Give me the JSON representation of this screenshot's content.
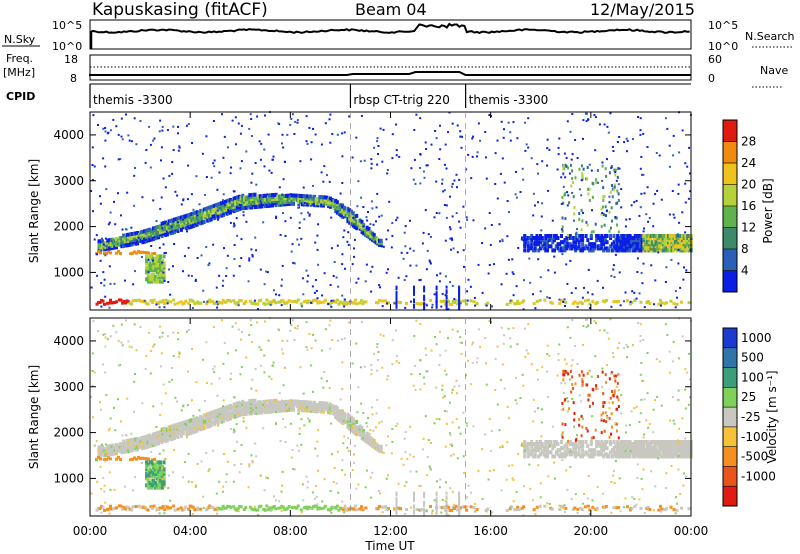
{
  "header": {
    "station": "Kapuskasing (fitACF)",
    "beam": "Beam 04",
    "date": "12/May/2015"
  },
  "top_panels": {
    "nsky_label": "N.Sky",
    "nsky_ticks": [
      "10^5",
      "10^0"
    ],
    "nsearch_label": "N.Search",
    "nsearch_ticks": [
      "10^5",
      "10^0"
    ],
    "freq_label": "Freq.",
    "freq_unit": "[MHz]",
    "freq_ticks": [
      "18",
      "8"
    ],
    "nave_label": "Nave",
    "nave_ticks": [
      "60",
      "0"
    ],
    "cpid_label": "CPID"
  },
  "cpid_segments": [
    {
      "label": "themis -3300",
      "start_hour": 0.0,
      "end_hour": 10.4
    },
    {
      "label": "rbsp CT-trig 220",
      "start_hour": 10.4,
      "end_hour": 15.0
    },
    {
      "label": "themis -3300",
      "start_hour": 15.0,
      "end_hour": 24.0
    }
  ],
  "x_axis": {
    "label": "Time UT",
    "range_hours": [
      0,
      24
    ],
    "ticks": [
      "00:00",
      "04:00",
      "08:00",
      "12:00",
      "16:00",
      "20:00",
      "00:00"
    ],
    "tick_hours": [
      0,
      4,
      8,
      12,
      16,
      20,
      24
    ]
  },
  "y_axis": {
    "label": "Slant Range [km]",
    "range_km": [
      180,
      4500
    ],
    "ticks": [
      "1000",
      "2000",
      "3000",
      "4000"
    ],
    "tick_values": [
      1000,
      2000,
      3000,
      4000
    ]
  },
  "power_colorbar": {
    "label": "Power [dB]",
    "range": [
      0,
      32
    ],
    "ticks": [
      "4",
      "8",
      "12",
      "16",
      "20",
      "24",
      "28"
    ],
    "colors": [
      "#0a1ee6",
      "#2a5fb8",
      "#3d8a6a",
      "#5fb24e",
      "#b6d23a",
      "#f0c21e",
      "#f08a10",
      "#e11a10"
    ]
  },
  "velocity_colorbar": {
    "label": "Velocity [m s⁻¹]",
    "ticks": [
      "1000",
      "500",
      "100",
      "25",
      "-25",
      "-100",
      "-500",
      "-1000"
    ],
    "colors": [
      "#1a3ad0",
      "#2f76a8",
      "#3c9d7a",
      "#7fd15a",
      "#c8c8c0",
      "#f5c23a",
      "#f59020",
      "#e8541a",
      "#e01c12"
    ]
  },
  "chart_data": {
    "type": "heatmap",
    "title": "Kapuskasing (fitACF)",
    "xlabel": "Time UT",
    "ylabel": "Slant Range [km]",
    "xlim_hours": [
      0,
      24
    ],
    "ylim_km": [
      180,
      4500
    ],
    "panels": [
      "power",
      "velocity"
    ],
    "backscatter_band": {
      "description_points_hours": [
        0.5,
        2,
        4,
        6,
        8,
        9.5,
        10.5,
        11.5
      ],
      "lower_range_km": [
        1500,
        1650,
        2000,
        2400,
        2500,
        2450,
        2000,
        1600
      ],
      "upper_range_km": [
        1700,
        1900,
        2300,
        2700,
        2700,
        2650,
        2300,
        1700
      ]
    },
    "lower_band_range_km": [
      300,
      400
    ],
    "dashed_marks_hours": [
      10.4,
      15.0
    ]
  }
}
